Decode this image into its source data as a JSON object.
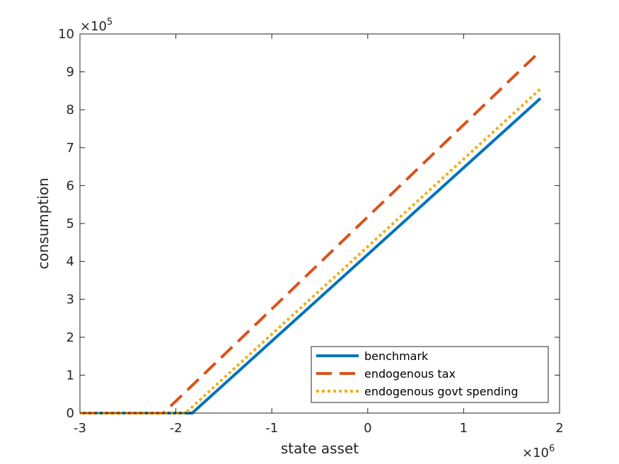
{
  "chart_data": {
    "type": "line",
    "title": "",
    "xlabel": "state asset",
    "ylabel": "consumption",
    "x_exponent_label": "6",
    "y_exponent_label": "5",
    "x_multiplier": 1000000,
    "y_multiplier": 100000,
    "xlim": [
      -3,
      2
    ],
    "ylim": [
      0,
      10
    ],
    "x_ticks": [
      -3,
      -2,
      -1,
      0,
      1,
      2
    ],
    "x_tick_labels": [
      "-3",
      "-2",
      "-1",
      "0",
      "1",
      "2"
    ],
    "y_ticks": [
      0,
      1,
      2,
      3,
      4,
      5,
      6,
      7,
      8,
      9,
      10
    ],
    "y_tick_labels": [
      "0",
      "1",
      "2",
      "3",
      "4",
      "5",
      "6",
      "7",
      "8",
      "9",
      "10"
    ],
    "grid": false,
    "legend_position": "bottom-right",
    "series": [
      {
        "name": "benchmark",
        "color": "#0072BD",
        "style": "solid",
        "x": [
          -3,
          -1.83,
          1.8
        ],
        "y": [
          0,
          0,
          8.3
        ]
      },
      {
        "name": "endogenous tax",
        "color": "#D95319",
        "style": "dashed",
        "x": [
          -3,
          -2.13,
          1.8
        ],
        "y": [
          0,
          0,
          9.55
        ]
      },
      {
        "name": "endogenous govt spending",
        "color": "#EDB120",
        "style": "dotted",
        "x": [
          -3,
          -1.9,
          1.8
        ],
        "y": [
          0,
          0,
          8.55
        ]
      }
    ]
  }
}
